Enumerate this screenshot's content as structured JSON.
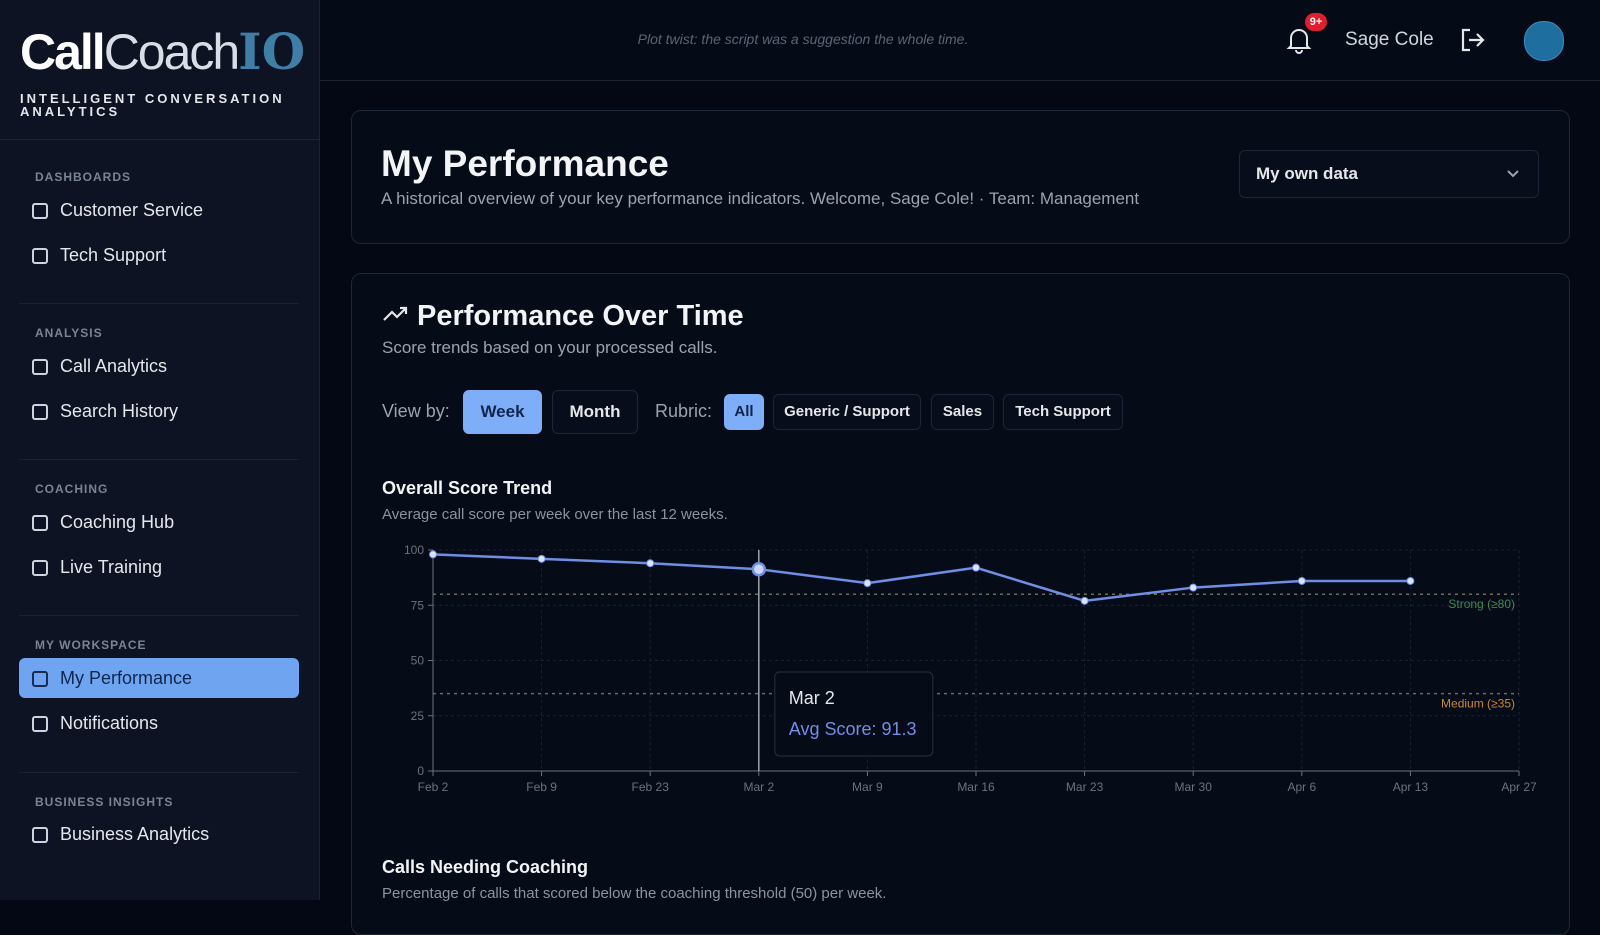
{
  "sidebar": {
    "logo": {
      "call": "Call",
      "coach": "Coach",
      "io": "IO"
    },
    "tagline": "INTELLIGENT CONVERSATION ANALYTICS",
    "sections": [
      {
        "heading": "DASHBOARDS",
        "items": [
          "Customer Service",
          "Tech Support"
        ]
      },
      {
        "heading": "ANALYSIS",
        "items": [
          "Call Analytics",
          "Search History"
        ]
      },
      {
        "heading": "COACHING",
        "items": [
          "Coaching Hub",
          "Live Training"
        ]
      },
      {
        "heading": "MY WORKSPACE",
        "items": [
          "My Performance",
          "Notifications"
        ]
      },
      {
        "heading": "BUSINESS INSIGHTS",
        "items": [
          "Business Analytics"
        ]
      }
    ]
  },
  "header": {
    "tagline": "Plot twist: the script was a suggestion the whole time.",
    "badge": "9+",
    "user": "Sage Cole"
  },
  "page": {
    "title": "My Performance",
    "description": "A historical overview of your key performance indicators. Welcome, Sage Cole! · Team: Management",
    "scope_select": "My own data"
  },
  "performance": {
    "title": "Performance Over Time",
    "subtitle": "Score trends based on your processed calls.",
    "view_by_label": "View by:",
    "view_options": [
      "Week",
      "Month"
    ],
    "rubric_label": "Rubric:",
    "rubric_options": [
      "All",
      "Generic / Support",
      "Sales",
      "Tech Support"
    ]
  },
  "chart_data": {
    "type": "line",
    "title": "Overall Score Trend",
    "subtitle": "Average call score per week over the last 12 weeks.",
    "categories": [
      "Feb 2",
      "Feb 9",
      "Feb 23",
      "Mar 2",
      "Mar 9",
      "Mar 16",
      "Mar 23",
      "Mar 30",
      "Apr 6",
      "Apr 13",
      "Apr 27"
    ],
    "values": [
      98,
      96,
      94,
      91.3,
      85,
      92,
      77,
      83,
      86,
      86,
      null
    ],
    "color": "#6f8fe6",
    "ylim": [
      0,
      100
    ],
    "yticks": [
      0,
      25,
      50,
      75,
      100
    ],
    "grid": true,
    "reference_lines": [
      {
        "value": 80,
        "label": "Strong (≥80)",
        "color": "#3f8a4a"
      },
      {
        "value": 35,
        "label": "Medium (≥35)",
        "color": "#c98a2e"
      }
    ],
    "tooltip": {
      "title": "Mar 2",
      "text": "Avg Score: 91.3"
    }
  },
  "coaching": {
    "title": "Calls Needing Coaching",
    "subtitle": "Percentage of calls that scored below the coaching threshold (50) per week."
  }
}
